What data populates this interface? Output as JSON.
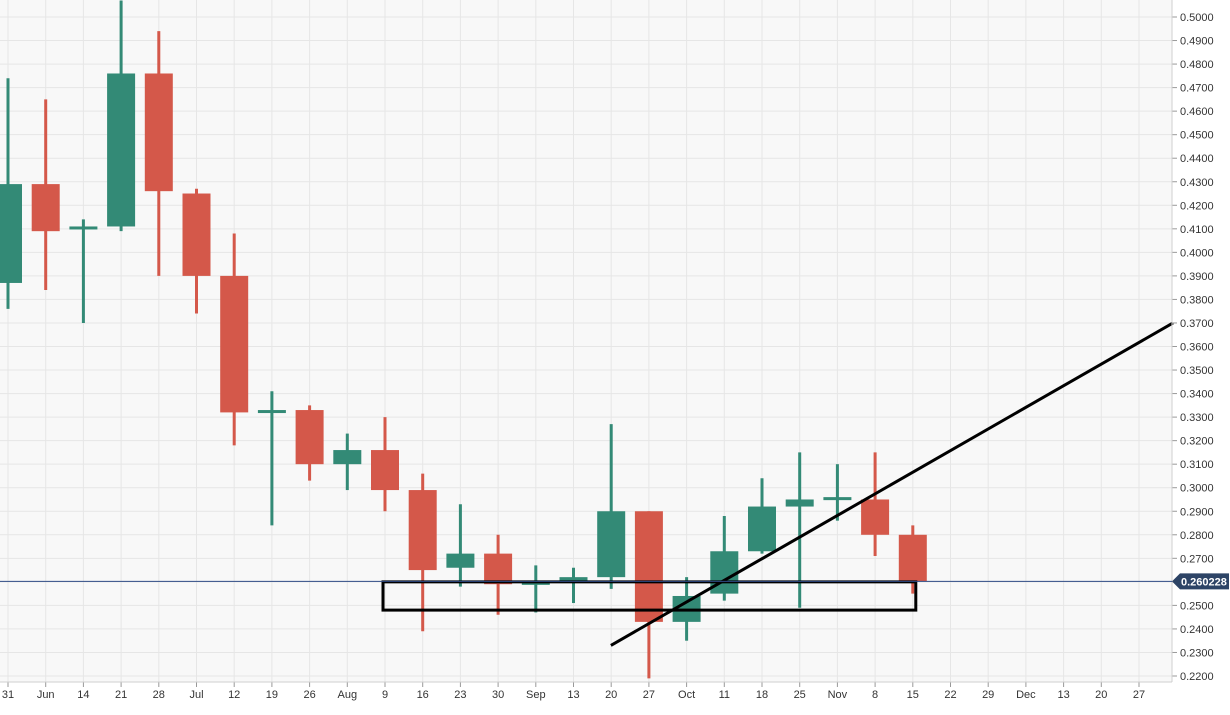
{
  "chart_data": {
    "type": "candlestick",
    "title": "",
    "xlabel": "",
    "ylabel": "",
    "ylim": [
      0.22,
      0.5
    ],
    "grid": true,
    "x_tick_labels": [
      "31",
      "Jun",
      "14",
      "21",
      "28",
      "Jul",
      "12",
      "19",
      "26",
      "Aug",
      "9",
      "16",
      "23",
      "30",
      "Sep",
      "13",
      "20",
      "27",
      "Oct",
      "11",
      "18",
      "25",
      "Nov",
      "8",
      "15",
      "22",
      "29",
      "Dec",
      "13",
      "20",
      "27"
    ],
    "y_tick_labels": [
      "0.2200",
      "0.2300",
      "0.2400",
      "0.2500",
      "0.2600",
      "0.2700",
      "0.2800",
      "0.2900",
      "0.3000",
      "0.3100",
      "0.3200",
      "0.3300",
      "0.3400",
      "0.3500",
      "0.3600",
      "0.3700",
      "0.3800",
      "0.3900",
      "0.4000",
      "0.4100",
      "0.4200",
      "0.4300",
      "0.4400",
      "0.4500",
      "0.4600",
      "0.4700",
      "0.4800",
      "0.4900",
      "0.5000"
    ],
    "candles": [
      {
        "date": "31",
        "open": 0.387,
        "high": 0.474,
        "low": 0.376,
        "close": 0.429
      },
      {
        "date": "Jun",
        "open": 0.429,
        "high": 0.465,
        "low": 0.384,
        "close": 0.409
      },
      {
        "date": "14",
        "open": 0.41,
        "high": 0.414,
        "low": 0.37,
        "close": 0.411
      },
      {
        "date": "21",
        "open": 0.411,
        "high": 0.507,
        "low": 0.409,
        "close": 0.476
      },
      {
        "date": "28",
        "open": 0.476,
        "high": 0.494,
        "low": 0.39,
        "close": 0.426
      },
      {
        "date": "Jul",
        "open": 0.425,
        "high": 0.427,
        "low": 0.374,
        "close": 0.39
      },
      {
        "date": "12",
        "open": 0.39,
        "high": 0.408,
        "low": 0.318,
        "close": 0.332
      },
      {
        "date": "19",
        "open": 0.332,
        "high": 0.341,
        "low": 0.284,
        "close": 0.333
      },
      {
        "date": "26",
        "open": 0.333,
        "high": 0.335,
        "low": 0.303,
        "close": 0.31
      },
      {
        "date": "Aug",
        "open": 0.31,
        "high": 0.323,
        "low": 0.299,
        "close": 0.316
      },
      {
        "date": "9",
        "open": 0.316,
        "high": 0.33,
        "low": 0.29,
        "close": 0.299
      },
      {
        "date": "16",
        "open": 0.299,
        "high": 0.306,
        "low": 0.239,
        "close": 0.265
      },
      {
        "date": "23",
        "open": 0.266,
        "high": 0.293,
        "low": 0.258,
        "close": 0.272
      },
      {
        "date": "30",
        "open": 0.272,
        "high": 0.28,
        "low": 0.246,
        "close": 0.259
      },
      {
        "date": "Sep",
        "open": 0.259,
        "high": 0.267,
        "low": 0.247,
        "close": 0.26
      },
      {
        "date": "13",
        "open": 0.26,
        "high": 0.266,
        "low": 0.251,
        "close": 0.262
      },
      {
        "date": "20",
        "open": 0.262,
        "high": 0.327,
        "low": 0.257,
        "close": 0.29
      },
      {
        "date": "27",
        "open": 0.29,
        "high": 0.29,
        "low": 0.219,
        "close": 0.243
      },
      {
        "date": "Oct",
        "open": 0.243,
        "high": 0.262,
        "low": 0.235,
        "close": 0.254
      },
      {
        "date": "11",
        "open": 0.255,
        "high": 0.288,
        "low": 0.252,
        "close": 0.273
      },
      {
        "date": "18",
        "open": 0.273,
        "high": 0.304,
        "low": 0.272,
        "close": 0.292
      },
      {
        "date": "25",
        "open": 0.292,
        "high": 0.315,
        "low": 0.249,
        "close": 0.295
      },
      {
        "date": "Nov",
        "open": 0.295,
        "high": 0.31,
        "low": 0.286,
        "close": 0.296
      },
      {
        "date": "8",
        "open": 0.295,
        "high": 0.315,
        "low": 0.271,
        "close": 0.28
      },
      {
        "date": "15",
        "open": 0.28,
        "high": 0.284,
        "low": 0.255,
        "close": 0.260228
      }
    ],
    "current_price": 0.260228,
    "current_price_label": "0.260228",
    "annotations": {
      "trendline": {
        "from": {
          "date": "27",
          "price": 0.233
        },
        "to": {
          "date": "Dec 27 +",
          "price": 0.37
        }
      },
      "support_zone": {
        "from_date": "9",
        "to_date": "15",
        "top": 0.26,
        "bottom": 0.248
      }
    },
    "colors": {
      "up": "#338a76",
      "down": "#d4584a",
      "price_line": "#2e4a85",
      "price_tag": "#2d4466",
      "grid": "#e6e6e6",
      "background": "#f8f8f8",
      "annotation": "#000000"
    }
  }
}
